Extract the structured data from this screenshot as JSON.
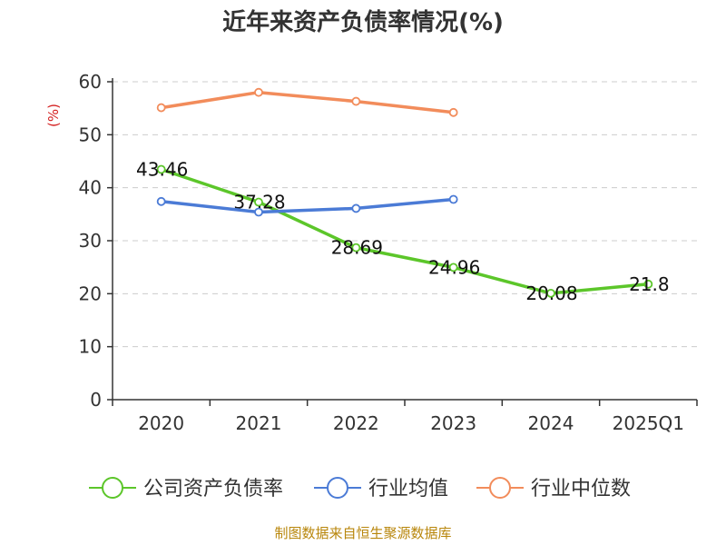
{
  "chart_data": {
    "type": "line",
    "title": "近年来资产负债率情况(%)",
    "ylabel": "(%)",
    "ylim": [
      0,
      60
    ],
    "yticks": [
      0,
      10,
      20,
      30,
      40,
      50,
      60
    ],
    "categories": [
      "2020",
      "2021",
      "2022",
      "2023",
      "2024",
      "2025Q1"
    ],
    "grid": true,
    "legend_position": "bottom",
    "series": [
      {
        "name": "公司资产负债率",
        "color": "#5cc62a",
        "values": [
          43.46,
          37.28,
          28.69,
          24.96,
          20.08,
          21.8
        ],
        "labels": [
          "43.46",
          "37.28",
          "28.69",
          "24.96",
          "20.08",
          "21.8"
        ]
      },
      {
        "name": "行业均值",
        "color": "#4b7bd6",
        "values": [
          37.4,
          35.4,
          36.1,
          37.8,
          null,
          null
        ]
      },
      {
        "name": "行业中位数",
        "color": "#f28c5b",
        "values": [
          55.1,
          58.0,
          56.3,
          54.2,
          null,
          null
        ]
      }
    ]
  },
  "footer": {
    "source": "制图数据来自恒生聚源数据库"
  }
}
